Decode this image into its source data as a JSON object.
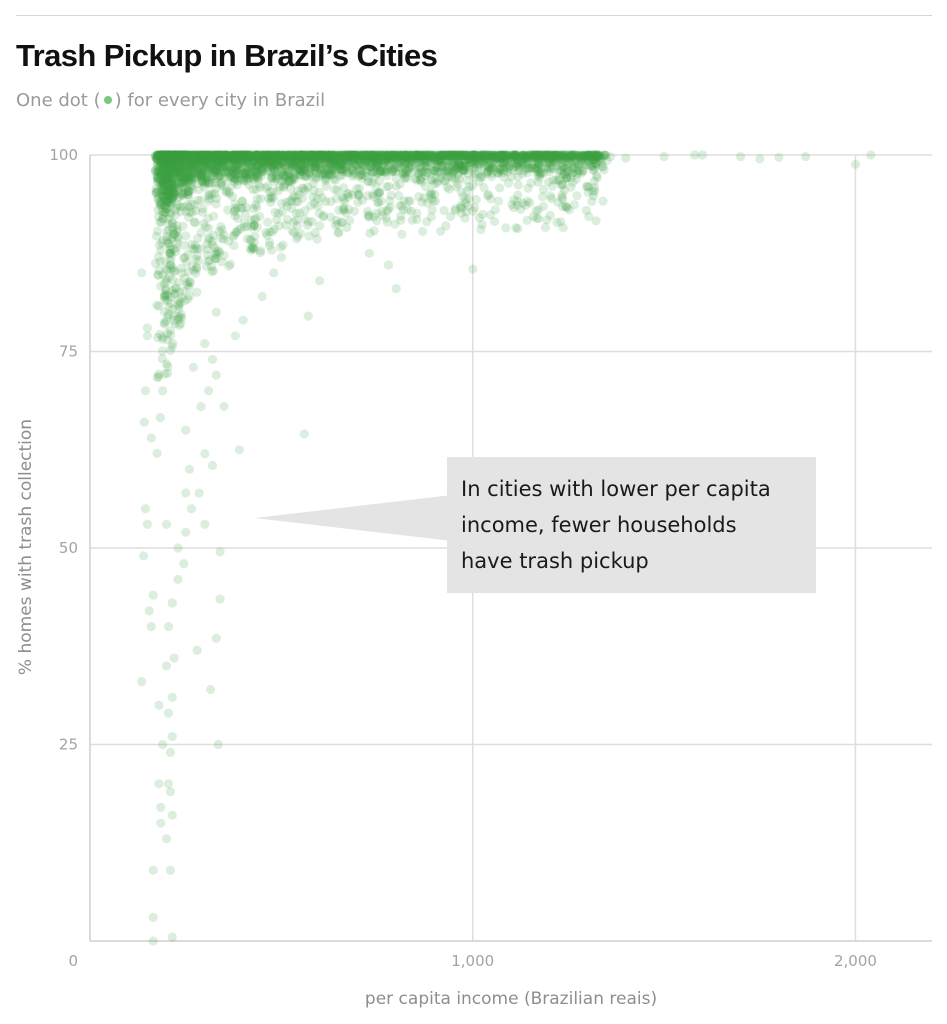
{
  "header": {
    "title": "Trash Pickup in Brazil’s Cities",
    "subtitle_before": "One dot (",
    "subtitle_after": ") for every city in Brazil"
  },
  "colors": {
    "dot": "#3d9e44",
    "grid": "#dedede",
    "annotation_bg": "#e4e4e4"
  },
  "annotation": {
    "lines": [
      "In cities with lower per capita",
      "income, fewer households",
      "have trash pickup"
    ]
  },
  "chart_data": {
    "type": "scatter",
    "title": "Trash Pickup in Brazil’s Cities",
    "subtitle": "One dot (•) for every city in Brazil",
    "xlabel": "per capita income (Brazilian reais)",
    "ylabel": "% homes with trash collection",
    "xlim": [
      0,
      2200
    ],
    "ylim": [
      0,
      100
    ],
    "x_ticks": [
      {
        "value": 0,
        "label": "0"
      },
      {
        "value": 1000,
        "label": "1,000"
      },
      {
        "value": 2000,
        "label": "2,000"
      }
    ],
    "y_ticks": [
      {
        "value": 25,
        "label": "25"
      },
      {
        "value": 50,
        "label": "50"
      },
      {
        "value": 75,
        "label": "75"
      },
      {
        "value": 100,
        "label": "100"
      }
    ],
    "grid": true,
    "annotation": "In cities with lower per capita income, fewer households have trash pickup",
    "series": [
      {
        "points": [
          [
            135,
            85
          ],
          [
            170,
            99.9
          ],
          [
            150,
            78
          ],
          [
            150,
            77
          ],
          [
            145,
            70
          ],
          [
            142,
            66
          ],
          [
            160,
            64
          ],
          [
            145,
            55
          ],
          [
            150,
            53
          ],
          [
            140,
            49
          ],
          [
            165,
            44
          ],
          [
            155,
            42
          ],
          [
            160,
            40
          ],
          [
            135,
            33
          ],
          [
            180,
            30
          ],
          [
            190,
            25
          ],
          [
            180,
            20
          ],
          [
            185,
            15
          ],
          [
            200,
            13
          ],
          [
            185,
            17
          ],
          [
            165,
            9
          ],
          [
            165,
            3
          ],
          [
            165,
            0
          ],
          [
            215,
            0.5
          ],
          [
            210,
            9
          ],
          [
            215,
            16
          ],
          [
            210,
            19
          ],
          [
            205,
            20
          ],
          [
            210,
            24
          ],
          [
            215,
            26
          ],
          [
            205,
            29
          ],
          [
            215,
            31
          ],
          [
            200,
            35
          ],
          [
            220,
            36
          ],
          [
            205,
            40
          ],
          [
            215,
            43
          ],
          [
            230,
            46
          ],
          [
            245,
            48
          ],
          [
            230,
            50
          ],
          [
            250,
            52
          ],
          [
            200,
            53
          ],
          [
            265,
            55
          ],
          [
            285,
            57
          ],
          [
            260,
            60
          ],
          [
            300,
            62
          ],
          [
            250,
            65
          ],
          [
            290,
            68
          ],
          [
            310,
            70
          ],
          [
            270,
            73
          ],
          [
            330,
            72
          ],
          [
            350,
            68
          ],
          [
            320,
            74
          ],
          [
            300,
            76
          ],
          [
            380,
            77
          ],
          [
            400,
            79
          ],
          [
            330,
            80
          ],
          [
            450,
            82
          ],
          [
            480,
            85
          ],
          [
            500,
            87
          ],
          [
            430,
            88
          ],
          [
            550,
            90
          ],
          [
            600,
            91
          ],
          [
            650,
            93
          ],
          [
            700,
            94
          ],
          [
            750,
            95
          ],
          [
            800,
            96
          ],
          [
            850,
            97
          ],
          [
            900,
            98
          ],
          [
            950,
            98.5
          ],
          [
            1000,
            99
          ],
          [
            1100,
            99.3
          ],
          [
            1200,
            99.5
          ],
          [
            1300,
            99.7
          ],
          [
            1400,
            99.6
          ],
          [
            1500,
            99.8
          ],
          [
            1580,
            100
          ],
          [
            1600,
            100
          ],
          [
            1700,
            99.8
          ],
          [
            1750,
            99.5
          ],
          [
            1800,
            99.7
          ],
          [
            1870,
            99.8
          ],
          [
            2000,
            98.8
          ],
          [
            2040,
            100
          ],
          [
            1000,
            85.5
          ],
          [
            1240,
            95.5
          ],
          [
            880,
            91.5
          ],
          [
            930,
            91
          ],
          [
            780,
            86
          ],
          [
            800,
            83
          ],
          [
            730,
            87.5
          ],
          [
            600,
            84
          ],
          [
            570,
            79.5
          ],
          [
            390,
            62.5
          ],
          [
            560,
            64.5
          ],
          [
            340,
            43.5
          ],
          [
            330,
            38.5
          ],
          [
            335,
            25
          ],
          [
            340,
            49.5
          ],
          [
            315,
            32
          ],
          [
            280,
            37
          ],
          [
            250,
            57
          ],
          [
            320,
            60.5
          ],
          [
            300,
            53
          ]
        ]
      }
    ]
  },
  "chart_generation": {
    "cluster_count": 4200,
    "seed": 7
  }
}
